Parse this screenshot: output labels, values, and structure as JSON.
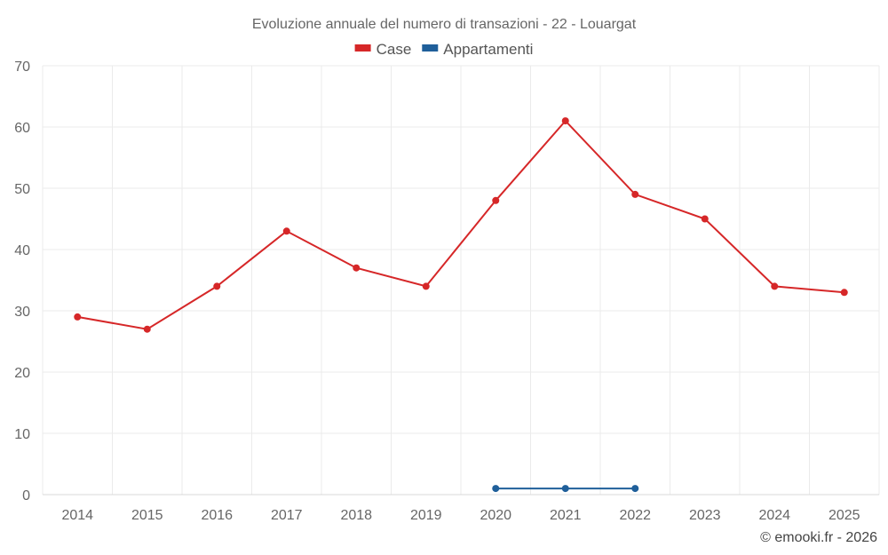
{
  "chart_data": {
    "type": "line",
    "title": "Evoluzione annuale del numero di transazioni - 22 - Louargat",
    "x": [
      "2014",
      "2015",
      "2016",
      "2017",
      "2018",
      "2019",
      "2020",
      "2021",
      "2022",
      "2023",
      "2024",
      "2025"
    ],
    "ylim": [
      0,
      70
    ],
    "yticks": [
      0,
      10,
      20,
      30,
      40,
      50,
      60,
      70
    ],
    "grid": true,
    "legend_position": "top-center",
    "series": [
      {
        "name": "Case",
        "color": "#d62728",
        "values": [
          29,
          27,
          34,
          43,
          37,
          34,
          48,
          61,
          49,
          45,
          34,
          33
        ]
      },
      {
        "name": "Appartamenti",
        "color": "#1f5f9a",
        "values": [
          null,
          null,
          null,
          null,
          null,
          null,
          1,
          1,
          1,
          null,
          null,
          null
        ]
      }
    ]
  },
  "credit": "© emooki.fr - 2026"
}
